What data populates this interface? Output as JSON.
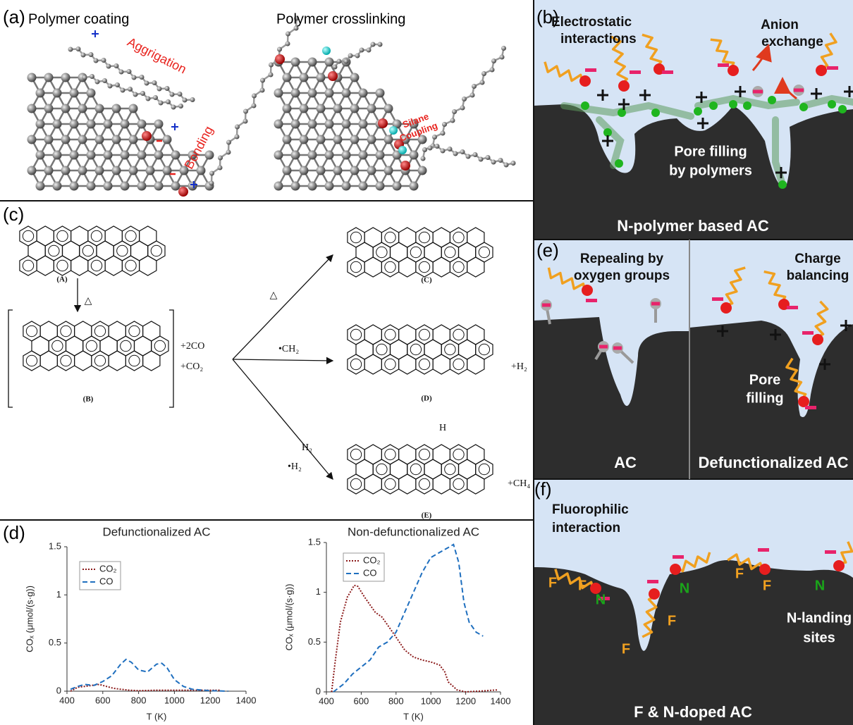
{
  "panels": {
    "a": {
      "label": "(a)",
      "titles": [
        "Polymer coating",
        "Polymer crosslinking"
      ],
      "notes": [
        "Aggrigation",
        "Bonding",
        "Silane",
        "Coupling"
      ]
    },
    "b": {
      "label": "(b)",
      "texts": [
        "Electrostatic",
        "interactions",
        "Anion",
        "exchange",
        "Pore filling",
        "by polymers"
      ],
      "caption": "N-polymer based AC"
    },
    "c": {
      "label": "(c)",
      "compounds": [
        "(A)",
        "(B)",
        "(C)",
        "(D)",
        "(E)"
      ],
      "texts": [
        "△",
        "+2CO",
        "+CO₂",
        "△",
        "•CH₂",
        "+H₂",
        "H₂",
        "•H₂",
        "+CH₄",
        "H"
      ]
    },
    "d": {
      "label": "(d)"
    },
    "e": {
      "label": "(e)",
      "texts": [
        "Repealing by",
        "oxygen groups",
        "Charge",
        "balancing",
        "Pore",
        "filling"
      ],
      "captions": [
        "AC",
        "Defunctionalized AC"
      ]
    },
    "f": {
      "label": "(f)",
      "texts": [
        "Fluorophilic",
        "interaction",
        "N-landing",
        "sites"
      ],
      "atoms": [
        "F",
        "F",
        "N",
        "N",
        "F",
        "F",
        "N",
        "F",
        "F"
      ],
      "caption": "F & N-doped AC"
    }
  },
  "chart_data": [
    {
      "type": "line",
      "title": "Defunctionalized AC",
      "xlabel": "T (K)",
      "ylabel": "COₓ (μmol/(s·g))",
      "xlim": [
        400,
        1400
      ],
      "xticks": [
        400,
        600,
        800,
        1000,
        1200,
        1400
      ],
      "ylim": [
        0,
        1.5
      ],
      "yticks": [
        0,
        0.5,
        1,
        1.5
      ],
      "series": [
        {
          "name": "CO₂",
          "color": "#8b1a1a",
          "x": [
            420,
            460,
            500,
            540,
            580,
            620,
            660,
            700,
            750,
            800,
            900,
            1000,
            1100,
            1200,
            1260
          ],
          "values": [
            0,
            0.04,
            0.05,
            0.06,
            0.07,
            0.05,
            0.03,
            0.02,
            0.01,
            0.005,
            0.01,
            0.01,
            0.01,
            0.01,
            0.01
          ]
        },
        {
          "name": "CO",
          "color": "#1f6fbf",
          "x": [
            420,
            460,
            500,
            550,
            600,
            650,
            700,
            730,
            760,
            800,
            850,
            900,
            930,
            960,
            1000,
            1050,
            1100,
            1200,
            1300
          ],
          "values": [
            0.02,
            0.05,
            0.07,
            0.06,
            0.1,
            0.16,
            0.28,
            0.33,
            0.3,
            0.22,
            0.2,
            0.28,
            0.29,
            0.24,
            0.12,
            0.05,
            0.02,
            0.005,
            0
          ]
        }
      ]
    },
    {
      "type": "line",
      "title": "Non-defunctionalized AC",
      "xlabel": "T (K)",
      "ylabel": "COₓ (μmol/(s·g))",
      "xlim": [
        400,
        1400
      ],
      "xticks": [
        400,
        600,
        800,
        1000,
        1200,
        1400
      ],
      "ylim": [
        0,
        1.5
      ],
      "yticks": [
        0,
        0.5,
        1,
        1.5
      ],
      "series": [
        {
          "name": "CO₂",
          "color": "#8b1a1a",
          "x": [
            430,
            450,
            480,
            520,
            560,
            580,
            620,
            680,
            720,
            760,
            800,
            850,
            900,
            950,
            1000,
            1050,
            1080,
            1100,
            1150,
            1200,
            1300,
            1380
          ],
          "values": [
            0,
            0.3,
            0.7,
            0.95,
            1.07,
            1.06,
            0.95,
            0.8,
            0.75,
            0.65,
            0.55,
            0.42,
            0.35,
            0.32,
            0.3,
            0.27,
            0.2,
            0.1,
            0.02,
            0,
            0.01,
            0.02
          ]
        },
        {
          "name": "CO",
          "color": "#1f6fbf",
          "x": [
            440,
            500,
            550,
            600,
            650,
            700,
            750,
            800,
            850,
            900,
            950,
            1000,
            1050,
            1100,
            1130,
            1160,
            1190,
            1220,
            1260,
            1300
          ],
          "values": [
            0,
            0.08,
            0.18,
            0.25,
            0.32,
            0.45,
            0.5,
            0.6,
            0.8,
            1.0,
            1.2,
            1.35,
            1.4,
            1.45,
            1.48,
            1.3,
            0.9,
            0.7,
            0.6,
            0.56
          ]
        }
      ]
    }
  ]
}
